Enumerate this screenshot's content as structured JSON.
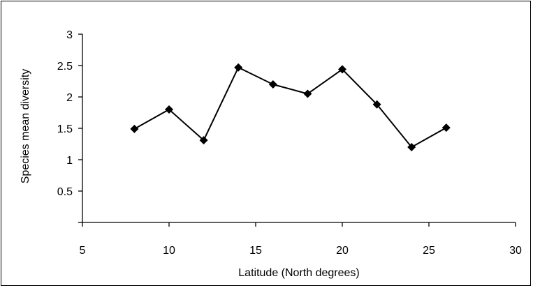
{
  "chart_data": {
    "type": "line",
    "title": "",
    "xlabel": "Latitude (North degrees)",
    "ylabel": "Species mean diversity",
    "xlim": [
      5,
      30
    ],
    "ylim": [
      0,
      3
    ],
    "x_ticks": [
      5,
      10,
      15,
      20,
      25,
      30
    ],
    "y_ticks": [
      0.5,
      1,
      1.5,
      2,
      2.5,
      3
    ],
    "grid": false,
    "legend": "none",
    "series": [
      {
        "color": "#000000",
        "marker": "diamond",
        "points": [
          {
            "x": 8,
            "y": 1.49
          },
          {
            "x": 10,
            "y": 1.8
          },
          {
            "x": 12,
            "y": 1.31
          },
          {
            "x": 14,
            "y": 2.47
          },
          {
            "x": 16,
            "y": 2.2
          },
          {
            "x": 18,
            "y": 2.05
          },
          {
            "x": 20,
            "y": 2.44
          },
          {
            "x": 22,
            "y": 1.88
          },
          {
            "x": 24,
            "y": 1.2
          },
          {
            "x": 26,
            "y": 1.51
          }
        ]
      }
    ]
  }
}
